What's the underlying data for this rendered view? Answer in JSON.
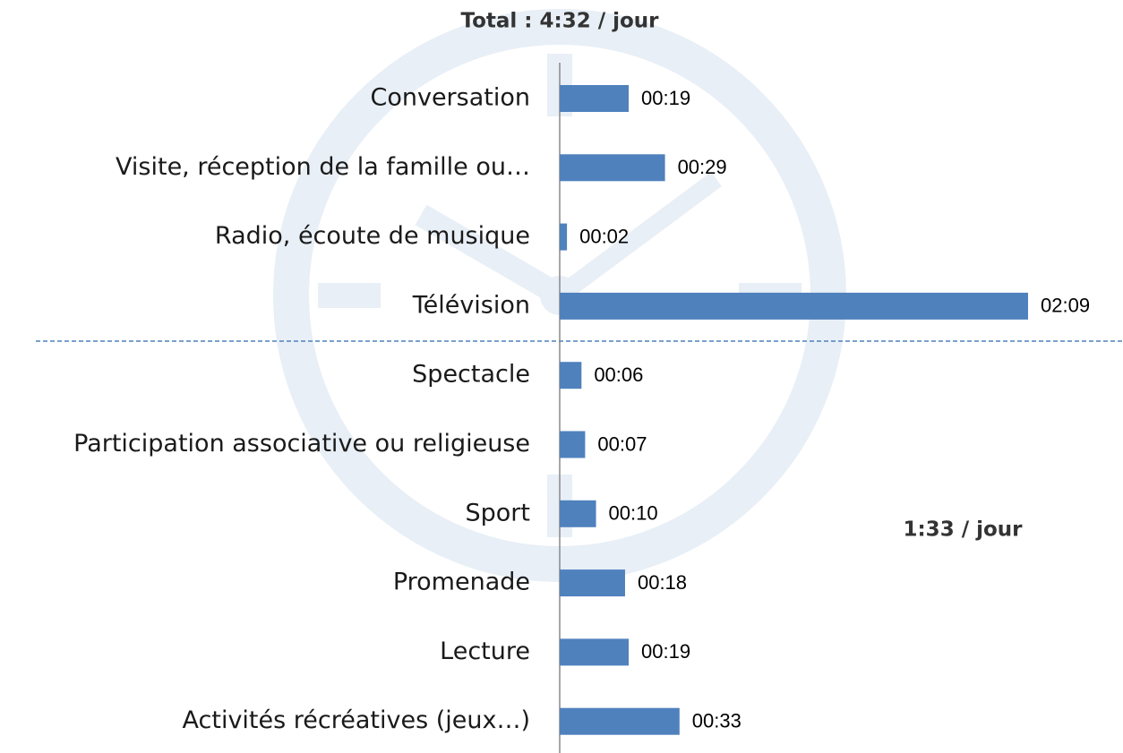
{
  "chart_data": {
    "type": "bar",
    "orientation": "horizontal",
    "title": "Total : 4:32 / jour",
    "annotations": [
      "1:33 / jour"
    ],
    "categories": [
      "Conversation",
      "Visite, réception de la famille ou…",
      "Radio, écoute de musique",
      "Télévision",
      "Spectacle",
      "Participation associative ou religieuse",
      "Sport",
      "Promenade",
      "Lecture",
      "Activités récréatives (jeux…)"
    ],
    "values": [
      19,
      29,
      2,
      129,
      6,
      7,
      10,
      18,
      19,
      33
    ],
    "value_labels": [
      "00:19",
      "00:29",
      "00:02",
      "02:09",
      "00:06",
      "00:07",
      "00:10",
      "00:18",
      "00:19",
      "00:33"
    ],
    "color": "#4f81bd"
  }
}
